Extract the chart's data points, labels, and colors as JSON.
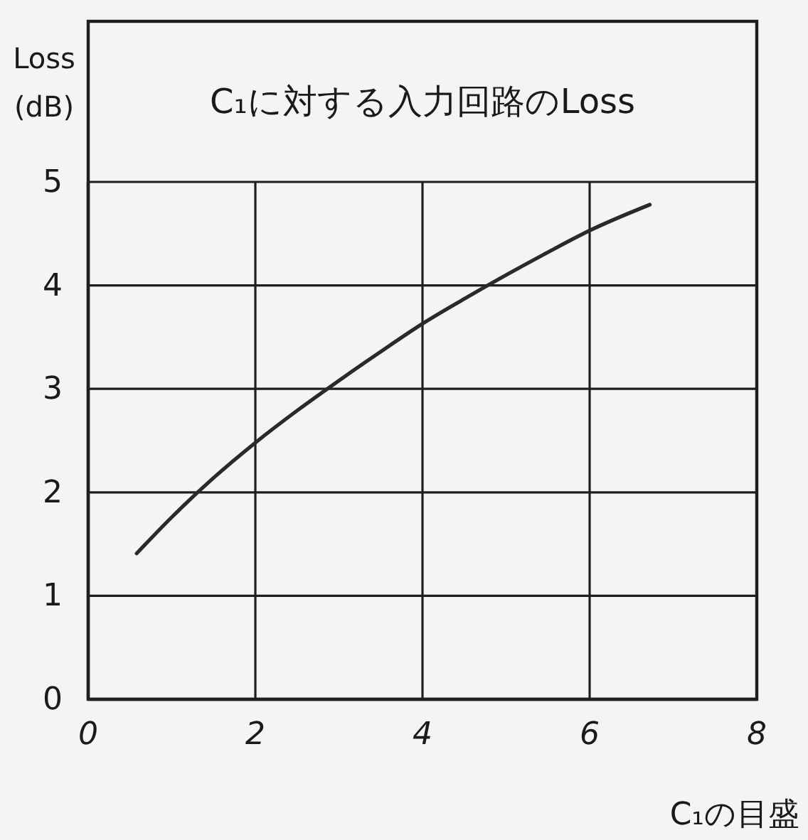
{
  "chart_data": {
    "type": "line",
    "title": "C₁に対する入力回路のLoss",
    "xlabel": "C₁の目盛",
    "ylabel": "Loss (dB)",
    "x": [
      0.58,
      1.0,
      1.5,
      2.0,
      2.5,
      3.0,
      3.5,
      4.0,
      4.5,
      5.0,
      5.5,
      6.0,
      6.72
    ],
    "values": [
      1.41,
      1.76,
      2.14,
      2.48,
      2.79,
      3.08,
      3.36,
      3.63,
      3.87,
      4.1,
      4.32,
      4.53,
      4.78
    ],
    "color": "#2a2a2a",
    "xlim": [
      0,
      8
    ],
    "xticks": [
      0,
      2,
      4,
      6,
      8
    ],
    "ylim": [
      0,
      5
    ],
    "yticks": [
      0,
      1,
      2,
      3,
      4,
      5
    ],
    "grid": true
  }
}
